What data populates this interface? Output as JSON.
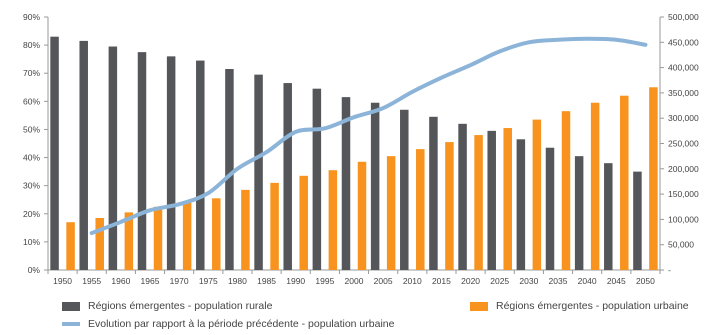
{
  "chart_data": {
    "type": "bar",
    "categories": [
      "1950",
      "1955",
      "1960",
      "1965",
      "1970",
      "1975",
      "1980",
      "1985",
      "1990",
      "1995",
      "2000",
      "2005",
      "2010",
      "2015",
      "2020",
      "2025",
      "2030",
      "2035",
      "2040",
      "2045",
      "2050"
    ],
    "series": [
      {
        "name": "Régions émergentes - population rurale",
        "type": "bar",
        "axis": "left",
        "color": "#54565a",
        "values": [
          83,
          81.5,
          79.5,
          77.5,
          76,
          74.5,
          71.5,
          69.5,
          66.5,
          64.5,
          61.5,
          59.5,
          57,
          54.5,
          52,
          49.5,
          46.5,
          43.5,
          40.5,
          38,
          35
        ]
      },
      {
        "name": "Régions émergentes - population urbaine",
        "type": "bar",
        "axis": "left",
        "color": "#f7931e",
        "values": [
          17,
          18.5,
          20.5,
          22.5,
          24,
          25.5,
          28.5,
          31,
          33.5,
          35.5,
          38.5,
          40.5,
          43,
          45.5,
          48,
          50.5,
          53.5,
          56.5,
          59.5,
          62,
          65
        ]
      },
      {
        "name": "Evolution par rapport à la période précédente - population urbaine",
        "type": "line",
        "axis": "right",
        "color": "#8cb4d9",
        "values": [
          null,
          73000,
          95000,
          118000,
          130000,
          152000,
          200000,
          233000,
          273000,
          280000,
          302000,
          320000,
          352000,
          380000,
          405000,
          432000,
          450000,
          455000,
          457000,
          455000,
          445000
        ]
      }
    ],
    "yAxisLeft": {
      "ticks": [
        "0%",
        "10%",
        "20%",
        "30%",
        "40%",
        "50%",
        "60%",
        "70%",
        "80%",
        "90%"
      ],
      "min": 0,
      "max": 90
    },
    "yAxisRight": {
      "ticks": [
        "-",
        "50,000",
        "100,000",
        "150,000",
        "200,000",
        "250,000",
        "300,000",
        "350,000",
        "400,000",
        "450,000",
        "500,000"
      ],
      "min": 0,
      "max": 500000
    },
    "grid": false,
    "legend_position": "bottom"
  }
}
